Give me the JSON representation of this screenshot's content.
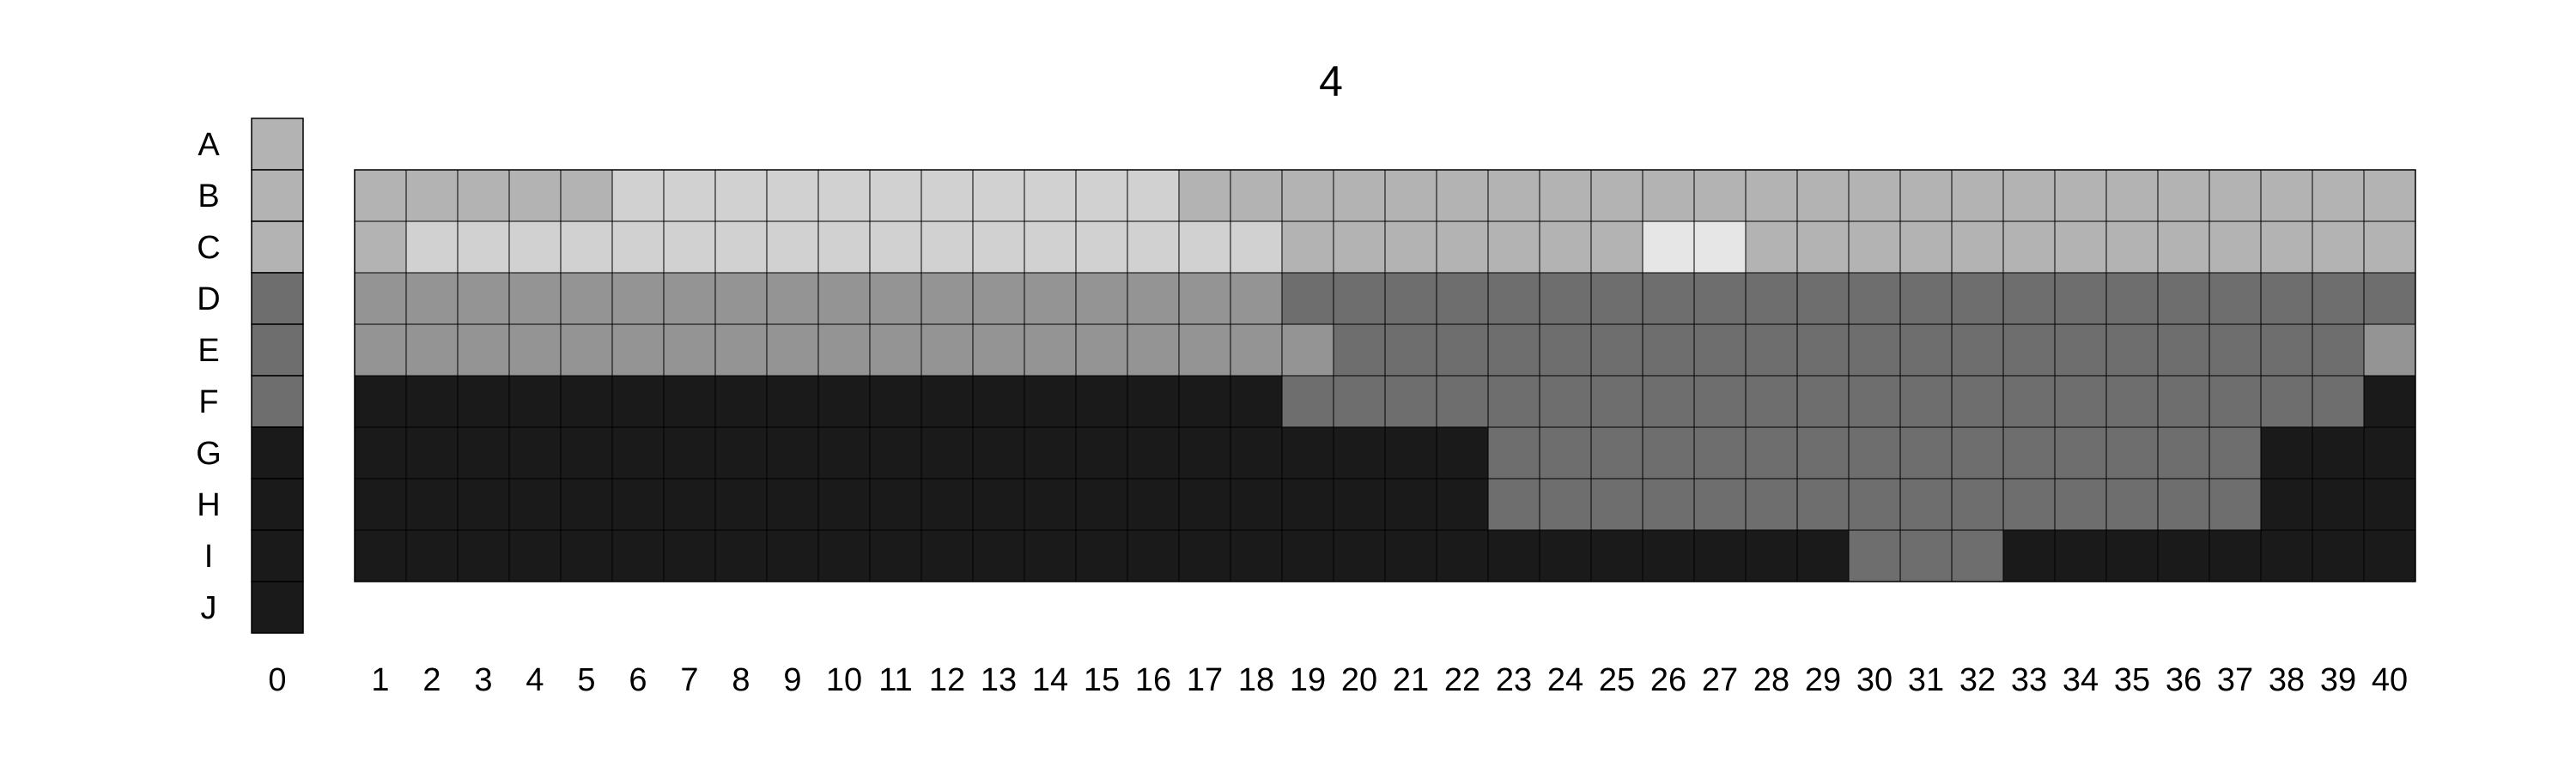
{
  "title": "4",
  "row_labels": [
    "A",
    "B",
    "C",
    "D",
    "E",
    "F",
    "G",
    "H",
    "I",
    "J"
  ],
  "reference_column": {
    "label": "0",
    "rows": [
      "A",
      "B",
      "C",
      "D",
      "E",
      "F",
      "G",
      "H",
      "I",
      "J"
    ]
  },
  "column_labels": [
    "1",
    "2",
    "3",
    "4",
    "5",
    "6",
    "7",
    "8",
    "9",
    "10",
    "11",
    "12",
    "13",
    "14",
    "15",
    "16",
    "17",
    "18",
    "19",
    "20",
    "21",
    "22",
    "23",
    "24",
    "25",
    "26",
    "27",
    "28",
    "29",
    "30",
    "31",
    "32",
    "33",
    "34",
    "35",
    "36",
    "37",
    "38",
    "39",
    "40"
  ],
  "grid_rows": [
    "B",
    "C",
    "D",
    "E",
    "F",
    "G",
    "H",
    "I"
  ],
  "palette": {
    "A": "#b3b3b3",
    "B": "#b3b3b3",
    "C": "#b3b3b3",
    "D": "#6e6e6e",
    "E": "#6e6e6e",
    "F": "#6e6e6e",
    "G": "#1a1a1a",
    "H": "#1a1a1a",
    "I": "#1a1a1a",
    "J": "#1a1a1a",
    "LIGHT": "#d1d1d1",
    "MIDLIGHT": "#949494",
    "WHITE": "#e6e6e6"
  },
  "cells": {
    "B": [
      "B",
      "B",
      "B",
      "B",
      "B",
      "LIGHT",
      "LIGHT",
      "LIGHT",
      "LIGHT",
      "LIGHT",
      "LIGHT",
      "LIGHT",
      "LIGHT",
      "LIGHT",
      "LIGHT",
      "LIGHT",
      "B",
      "B",
      "B",
      "B",
      "B",
      "B",
      "B",
      "B",
      "B",
      "B",
      "B",
      "B",
      "B",
      "B",
      "B",
      "B",
      "B",
      "B",
      "B",
      "B",
      "B",
      "B",
      "B",
      "B"
    ],
    "C": [
      "B",
      "LIGHT",
      "LIGHT",
      "LIGHT",
      "LIGHT",
      "LIGHT",
      "LIGHT",
      "LIGHT",
      "LIGHT",
      "LIGHT",
      "LIGHT",
      "LIGHT",
      "LIGHT",
      "LIGHT",
      "LIGHT",
      "LIGHT",
      "LIGHT",
      "LIGHT",
      "B",
      "B",
      "B",
      "B",
      "B",
      "B",
      "B",
      "WHITE",
      "WHITE",
      "B",
      "B",
      "B",
      "B",
      "B",
      "B",
      "B",
      "B",
      "B",
      "B",
      "B",
      "B",
      "B"
    ],
    "D": [
      "MIDLIGHT",
      "MIDLIGHT",
      "MIDLIGHT",
      "MIDLIGHT",
      "MIDLIGHT",
      "MIDLIGHT",
      "MIDLIGHT",
      "MIDLIGHT",
      "MIDLIGHT",
      "MIDLIGHT",
      "MIDLIGHT",
      "MIDLIGHT",
      "MIDLIGHT",
      "MIDLIGHT",
      "MIDLIGHT",
      "MIDLIGHT",
      "MIDLIGHT",
      "MIDLIGHT",
      "D",
      "D",
      "D",
      "D",
      "D",
      "D",
      "D",
      "D",
      "D",
      "D",
      "D",
      "D",
      "D",
      "D",
      "D",
      "D",
      "D",
      "D",
      "D",
      "D",
      "D",
      "D"
    ],
    "E": [
      "MIDLIGHT",
      "MIDLIGHT",
      "MIDLIGHT",
      "MIDLIGHT",
      "MIDLIGHT",
      "MIDLIGHT",
      "MIDLIGHT",
      "MIDLIGHT",
      "MIDLIGHT",
      "MIDLIGHT",
      "MIDLIGHT",
      "MIDLIGHT",
      "MIDLIGHT",
      "MIDLIGHT",
      "MIDLIGHT",
      "MIDLIGHT",
      "MIDLIGHT",
      "MIDLIGHT",
      "MIDLIGHT",
      "D",
      "D",
      "D",
      "D",
      "D",
      "D",
      "D",
      "D",
      "D",
      "D",
      "D",
      "D",
      "D",
      "D",
      "D",
      "D",
      "D",
      "D",
      "D",
      "D",
      "MIDLIGHT"
    ],
    "F": [
      "G",
      "G",
      "G",
      "G",
      "G",
      "G",
      "G",
      "G",
      "G",
      "G",
      "G",
      "G",
      "G",
      "G",
      "G",
      "G",
      "G",
      "G",
      "D",
      "D",
      "D",
      "D",
      "D",
      "D",
      "D",
      "D",
      "D",
      "D",
      "D",
      "D",
      "D",
      "D",
      "D",
      "D",
      "D",
      "D",
      "D",
      "D",
      "D",
      "G"
    ],
    "G": [
      "G",
      "G",
      "G",
      "G",
      "G",
      "G",
      "G",
      "G",
      "G",
      "G",
      "G",
      "G",
      "G",
      "G",
      "G",
      "G",
      "G",
      "G",
      "G",
      "G",
      "G",
      "G",
      "D",
      "D",
      "D",
      "D",
      "D",
      "D",
      "D",
      "D",
      "D",
      "D",
      "D",
      "D",
      "D",
      "D",
      "D",
      "G",
      "G",
      "G"
    ],
    "H": [
      "G",
      "G",
      "G",
      "G",
      "G",
      "G",
      "G",
      "G",
      "G",
      "G",
      "G",
      "G",
      "G",
      "G",
      "G",
      "G",
      "G",
      "G",
      "G",
      "G",
      "G",
      "G",
      "D",
      "D",
      "D",
      "D",
      "D",
      "D",
      "D",
      "D",
      "D",
      "D",
      "D",
      "D",
      "D",
      "D",
      "D",
      "G",
      "G",
      "G"
    ],
    "I": [
      "G",
      "G",
      "G",
      "G",
      "G",
      "G",
      "G",
      "G",
      "G",
      "G",
      "G",
      "G",
      "G",
      "G",
      "G",
      "G",
      "G",
      "G",
      "G",
      "G",
      "G",
      "G",
      "G",
      "G",
      "G",
      "G",
      "G",
      "G",
      "G",
      "D",
      "D",
      "D",
      "G",
      "G",
      "G",
      "G",
      "G",
      "G",
      "G",
      "G"
    ]
  }
}
